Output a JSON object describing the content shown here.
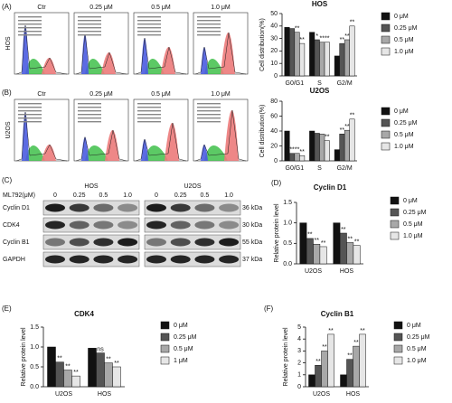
{
  "panels": [
    "(A)",
    "(B)",
    "(C)",
    "(D)",
    "(E)",
    "(F)"
  ],
  "flow": {
    "rows": [
      {
        "label": "HOS",
        "titles": [
          "Ctr",
          "0.25 μM",
          "0.5 μM",
          "1.0 μM"
        ]
      },
      {
        "label": "U2OS",
        "titles": [
          "Ctr",
          "0.25 μM",
          "0.5 μM",
          "1.0 μM"
        ]
      }
    ]
  },
  "western": {
    "treatment_label": "ML792(μM)",
    "cell_lines": [
      "HOS",
      "U2OS"
    ],
    "doses": [
      [
        "0",
        "0.25",
        "0.5",
        "1.0"
      ],
      [
        "0",
        "0.25",
        "0.5",
        "1.0"
      ]
    ],
    "proteins": [
      "Cyclin D1",
      "CDK4",
      "Cyclin B1",
      "GAPDH"
    ],
    "sizes": [
      "36 kDa",
      "30 kDa",
      "55 kDa",
      "37 kDa"
    ]
  },
  "chart_data": [
    {
      "type": "bar",
      "title": "HOS",
      "y_label": "Cell distribution(%)",
      "categories": [
        "G0/G1",
        "S",
        "G2/M"
      ],
      "ylim": [
        0,
        50
      ],
      "yticks": [
        0,
        10,
        20,
        30,
        40,
        50
      ],
      "legend": "right",
      "series": [
        {
          "name": "0 μM",
          "color": "#111111",
          "values": [
            39,
            35,
            16
          ],
          "significance": [
            null,
            null,
            null
          ]
        },
        {
          "name": "0.25 μM",
          "color": "#555555",
          "values": [
            38,
            29,
            26
          ],
          "significance": [
            null,
            "*",
            "**"
          ]
        },
        {
          "name": "0.5 μM",
          "color": "#a8a8a8",
          "values": [
            35,
            27,
            29
          ],
          "significance": [
            "**",
            "**",
            "**"
          ]
        },
        {
          "name": "1.0 μM",
          "color": "#e6e6e6",
          "values": [
            26,
            27,
            40
          ],
          "significance": [
            "**",
            "**",
            "**"
          ]
        }
      ]
    },
    {
      "type": "bar",
      "title": "U2OS",
      "y_label": "Cell distribution(%)",
      "categories": [
        "G0/G1",
        "S",
        "G2/M"
      ],
      "ylim": [
        0,
        80
      ],
      "yticks": [
        0,
        20,
        40,
        60,
        80
      ],
      "legend": "right",
      "series": [
        {
          "name": "0 μM",
          "color": "#111111",
          "values": [
            40,
            40,
            15
          ],
          "significance": [
            null,
            null,
            null
          ]
        },
        {
          "name": "0.25 μM",
          "color": "#555555",
          "values": [
            10,
            37,
            36
          ],
          "significance": [
            "**",
            null,
            "**"
          ]
        },
        {
          "name": "0.5 μM",
          "color": "#a8a8a8",
          "values": [
            10,
            36,
            41
          ],
          "significance": [
            "**",
            null,
            "**"
          ]
        },
        {
          "name": "1.0 μM",
          "color": "#e6e6e6",
          "values": [
            7,
            27,
            56
          ],
          "significance": [
            "**",
            "**",
            "**"
          ]
        }
      ]
    },
    {
      "type": "bar",
      "title": "Cyclin D1",
      "y_label": "Relative protein level",
      "categories": [
        "U2OS",
        "HOS"
      ],
      "ylim": [
        0,
        1.5
      ],
      "yticks": [
        {
          "value": 0,
          "label": "0.0"
        },
        0.5,
        {
          "value": 1,
          "label": "1.0"
        },
        1.5
      ],
      "legend": "right",
      "series": [
        {
          "name": "0 μM",
          "color": "#111111",
          "values": [
            1.0,
            1.0
          ],
          "significance": [
            null,
            null
          ]
        },
        {
          "name": "0.25 μM",
          "color": "#555555",
          "values": [
            0.62,
            0.75
          ],
          "significance": [
            "**",
            "**"
          ]
        },
        {
          "name": "0.5 μM",
          "color": "#a8a8a8",
          "values": [
            0.48,
            0.52
          ],
          "significance": [
            "**",
            "**"
          ]
        },
        {
          "name": "1.0 μM",
          "color": "#e6e6e6",
          "values": [
            0.42,
            0.45
          ],
          "significance": [
            "**",
            "**"
          ]
        }
      ]
    },
    {
      "type": "bar",
      "title": "CDK4",
      "y_label": "Relative protein level",
      "categories": [
        "U2OS",
        "HOS"
      ],
      "ylim": [
        0,
        1.5
      ],
      "yticks": [
        {
          "value": 0,
          "label": "0.0"
        },
        0.5,
        {
          "value": 1,
          "label": "1.0"
        },
        1.5
      ],
      "legend": "right",
      "series": [
        {
          "name": "0 μM",
          "color": "#111111",
          "values": [
            1.0,
            0.97
          ],
          "significance": [
            null,
            null
          ]
        },
        {
          "name": "0.25 μM",
          "color": "#555555",
          "values": [
            0.62,
            0.85
          ],
          "significance": [
            "**",
            "ns"
          ]
        },
        {
          "name": "0.5 μM",
          "color": "#a8a8a8",
          "values": [
            0.42,
            0.6
          ],
          "significance": [
            "**",
            "**"
          ]
        },
        {
          "name": "1 μM",
          "color": "#e6e6e6",
          "values": [
            0.27,
            0.5
          ],
          "significance": [
            "**",
            "**"
          ]
        }
      ]
    },
    {
      "type": "bar",
      "title": "Cyclin B1",
      "y_label": "Relative protein level",
      "categories": [
        "U2OS",
        "HOS"
      ],
      "ylim": [
        0,
        5
      ],
      "yticks": [
        0,
        1,
        2,
        3,
        4,
        5
      ],
      "legend": "right",
      "series": [
        {
          "name": "0 μM",
          "color": "#111111",
          "values": [
            1,
            1
          ],
          "significance": [
            null,
            null
          ]
        },
        {
          "name": "0.25 μM",
          "color": "#555555",
          "values": [
            1.8,
            2.3
          ],
          "significance": [
            "**",
            "**"
          ]
        },
        {
          "name": "0.5 μM",
          "color": "#a8a8a8",
          "values": [
            3.0,
            3.4
          ],
          "significance": [
            "**",
            "**"
          ]
        },
        {
          "name": "1.0 μM",
          "color": "#e6e6e6",
          "values": [
            4.4,
            4.4
          ],
          "significance": [
            "**",
            "**"
          ]
        }
      ]
    }
  ]
}
